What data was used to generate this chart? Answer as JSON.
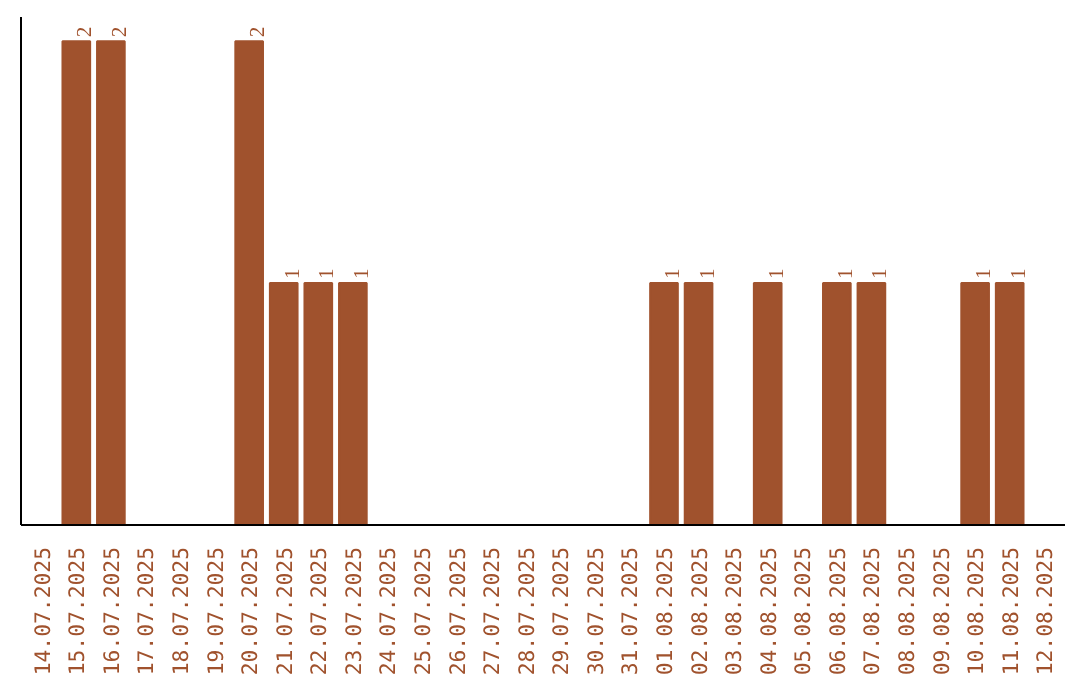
{
  "chart_data": {
    "type": "bar",
    "categories": [
      "14.07.2025",
      "15.07.2025",
      "16.07.2025",
      "17.07.2025",
      "18.07.2025",
      "19.07.2025",
      "20.07.2025",
      "21.07.2025",
      "22.07.2025",
      "23.07.2025",
      "24.07.2025",
      "25.07.2025",
      "26.07.2025",
      "27.07.2025",
      "28.07.2025",
      "29.07.2025",
      "30.07.2025",
      "31.07.2025",
      "01.08.2025",
      "02.08.2025",
      "03.08.2025",
      "04.08.2025",
      "05.08.2025",
      "06.08.2025",
      "07.08.2025",
      "08.08.2025",
      "09.08.2025",
      "10.08.2025",
      "11.08.2025",
      "12.08.2025"
    ],
    "values": [
      0,
      2,
      2,
      0,
      0,
      0,
      2,
      1,
      1,
      1,
      0,
      0,
      0,
      0,
      0,
      0,
      0,
      0,
      1,
      1,
      0,
      1,
      0,
      1,
      1,
      0,
      0,
      1,
      1,
      0
    ],
    "value_labels": [
      null,
      "2",
      "2",
      null,
      null,
      null,
      "2",
      "1",
      "1",
      "1",
      null,
      null,
      null,
      null,
      null,
      null,
      null,
      null,
      "1",
      "1",
      null,
      "1",
      null,
      "1",
      "1",
      null,
      null,
      "1",
      "1",
      null
    ],
    "color": "#a0522d",
    "ylim": [
      0,
      2.1
    ],
    "grid": false,
    "tick_labels": "x"
  }
}
